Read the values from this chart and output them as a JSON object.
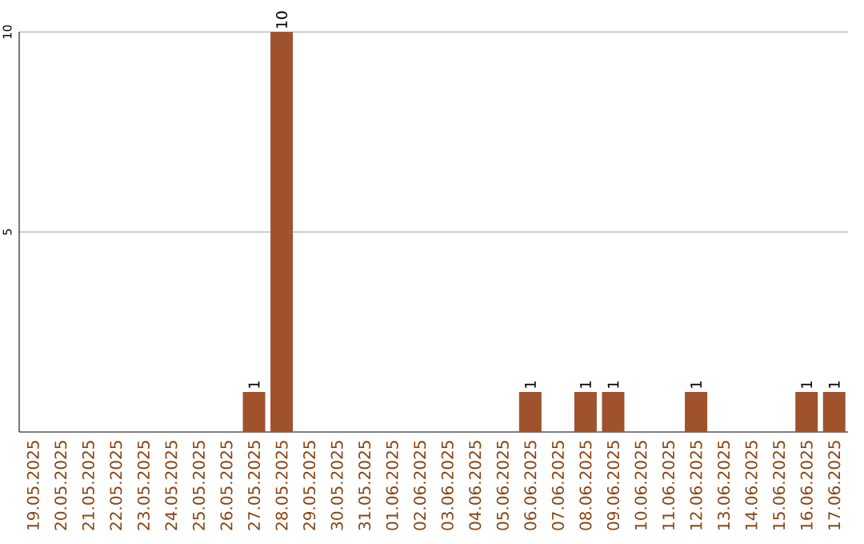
{
  "chart_data": {
    "type": "bar",
    "categories": [
      "19.05.2025",
      "20.05.2025",
      "21.05.2025",
      "22.05.2025",
      "23.05.2025",
      "24.05.2025",
      "25.05.2025",
      "26.05.2025",
      "27.05.2025",
      "28.05.2025",
      "29.05.2025",
      "30.05.2025",
      "31.05.2025",
      "01.06.2025",
      "02.06.2025",
      "03.06.2025",
      "04.06.2025",
      "05.06.2025",
      "06.06.2025",
      "07.06.2025",
      "08.06.2025",
      "09.06.2025",
      "10.06.2025",
      "11.06.2025",
      "12.06.2025",
      "13.06.2025",
      "14.06.2025",
      "15.06.2025",
      "16.06.2025",
      "17.06.2025"
    ],
    "values": [
      0,
      0,
      0,
      0,
      0,
      0,
      0,
      0,
      1,
      10,
      0,
      0,
      0,
      0,
      0,
      0,
      0,
      0,
      1,
      0,
      1,
      1,
      0,
      0,
      1,
      0,
      0,
      0,
      1,
      1
    ],
    "value_labels": [
      null,
      null,
      null,
      null,
      null,
      null,
      null,
      null,
      "1",
      "10",
      null,
      null,
      null,
      null,
      null,
      null,
      null,
      null,
      "1",
      null,
      "1",
      "1",
      null,
      null,
      "1",
      null,
      null,
      null,
      "1",
      "1"
    ],
    "color": "#a0522d",
    "ylim": [
      0,
      10
    ],
    "yticks": [
      5,
      10
    ],
    "grid": "y"
  }
}
